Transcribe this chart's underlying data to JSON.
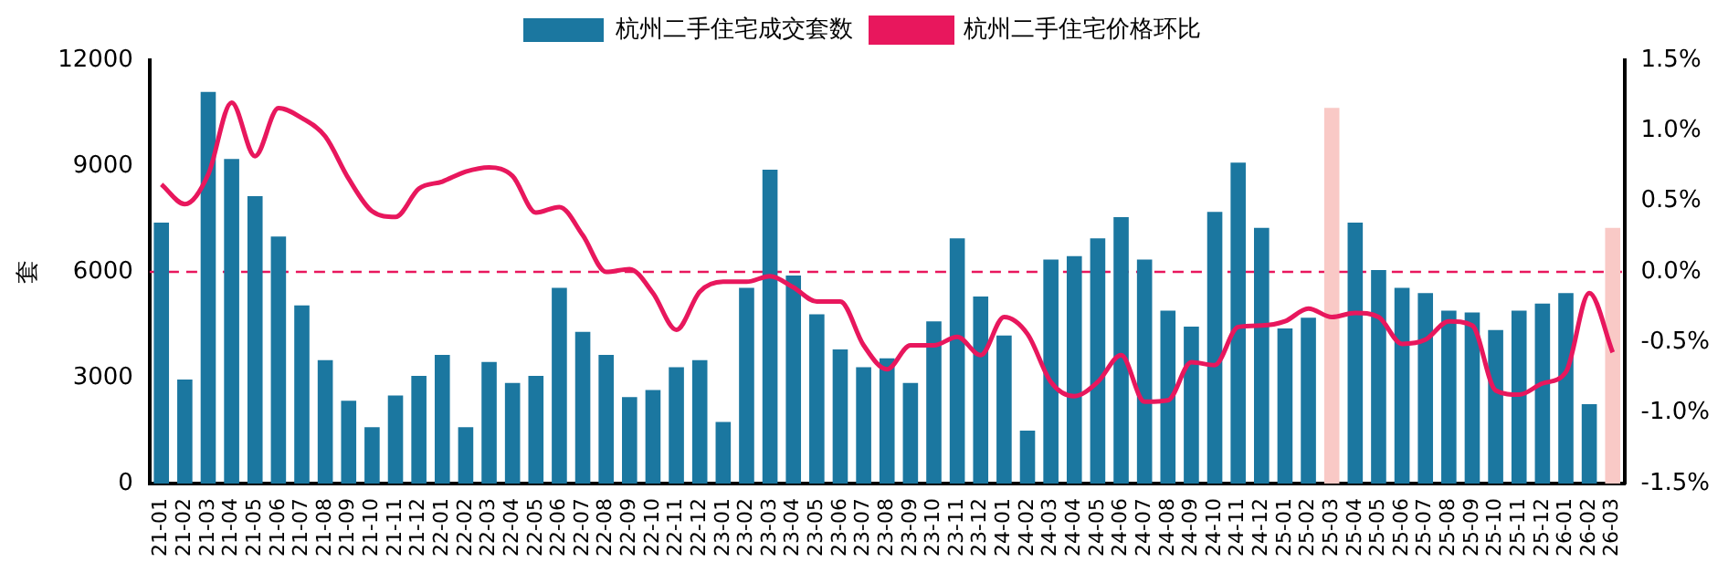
{
  "chart_data": {
    "type": "bar",
    "ylabel": "套",
    "legend": "top",
    "grid": false,
    "line_style": "solid",
    "marker": "none",
    "categories": [
      "21-01",
      "21-02",
      "21-03",
      "21-04",
      "21-05",
      "21-06",
      "21-07",
      "21-08",
      "21-09",
      "21-10",
      "21-11",
      "21-12",
      "22-01",
      "22-02",
      "22-03",
      "22-04",
      "22-05",
      "22-06",
      "22-07",
      "22-08",
      "22-09",
      "22-10",
      "22-11",
      "22-12",
      "23-01",
      "23-02",
      "23-03",
      "23-04",
      "23-05",
      "23-06",
      "23-07",
      "23-08",
      "23-09",
      "23-10",
      "23-11",
      "23-12",
      "24-01",
      "24-02",
      "24-03",
      "24-04",
      "24-05",
      "24-06",
      "24-07",
      "24-08",
      "24-09",
      "24-10",
      "24-11",
      "24-12",
      "25-01",
      "25-02",
      "25-03",
      "25-04",
      "25-05",
      "25-06",
      "25-07",
      "25-08",
      "25-09",
      "25-10",
      "25-11",
      "25-12",
      "26-01",
      "26-02",
      "26-03"
    ],
    "ylim": [
      0,
      12000
    ],
    "yticks": [
      0,
      3000,
      6000,
      9000,
      12000
    ],
    "y2lim": [
      -1.5,
      1.5
    ],
    "y2ticks": [
      {
        "value": -1.5,
        "label": "-1.5%"
      },
      {
        "value": -1,
        "label": "-1.0%"
      },
      {
        "value": -0.5,
        "label": "-0.5%"
      },
      {
        "value": 0,
        "label": "0.0%"
      },
      {
        "value": 0.5,
        "label": "0.5%"
      },
      {
        "value": 1,
        "label": "1.0%"
      },
      {
        "value": 1.5,
        "label": "1.5%"
      }
    ],
    "ref_lines": [
      {
        "axis": "y2",
        "value": 0,
        "color": "#e8175d",
        "line_style": "dashed"
      }
    ],
    "series": [
      {
        "name": "杭州二手住宅成交套数",
        "color": "#1b77a0",
        "colors": [
          "#1b77a0",
          "#1b77a0",
          "#1b77a0",
          "#1b77a0",
          "#1b77a0",
          "#1b77a0",
          "#1b77a0",
          "#1b77a0",
          "#1b77a0",
          "#1b77a0",
          "#1b77a0",
          "#1b77a0",
          "#1b77a0",
          "#1b77a0",
          "#1b77a0",
          "#1b77a0",
          "#1b77a0",
          "#1b77a0",
          "#1b77a0",
          "#1b77a0",
          "#1b77a0",
          "#1b77a0",
          "#1b77a0",
          "#1b77a0",
          "#1b77a0",
          "#1b77a0",
          "#1b77a0",
          "#1b77a0",
          "#1b77a0",
          "#1b77a0",
          "#1b77a0",
          "#1b77a0",
          "#1b77a0",
          "#1b77a0",
          "#1b77a0",
          "#1b77a0",
          "#1b77a0",
          "#1b77a0",
          "#1b77a0",
          "#1b77a0",
          "#1b77a0",
          "#1b77a0",
          "#1b77a0",
          "#1b77a0",
          "#1b77a0",
          "#1b77a0",
          "#1b77a0",
          "#1b77a0",
          "#1b77a0",
          "#1b77a0",
          "#f9c9c6",
          "#1b77a0",
          "#1b77a0",
          "#1b77a0",
          "#1b77a0",
          "#1b77a0",
          "#1b77a0",
          "#1b77a0",
          "#1b77a0",
          "#1b77a0",
          "#1b77a0",
          "#1b77a0",
          "#f9c9c6"
        ],
        "values": [
          7400,
          2950,
          11100,
          9200,
          8150,
          7000,
          5050,
          3500,
          2350,
          1600,
          2500,
          3050,
          3650,
          1600,
          3450,
          2850,
          3050,
          5550,
          4300,
          3650,
          2450,
          2650,
          3300,
          3500,
          1750,
          5550,
          8900,
          5900,
          4800,
          3800,
          3300,
          3550,
          2850,
          4600,
          6950,
          5300,
          4200,
          1500,
          6350,
          6450,
          6950,
          7550,
          6350,
          4900,
          4450,
          7700,
          9100,
          7250,
          4400,
          4700,
          10650,
          7400,
          6050,
          5550,
          5400,
          4900,
          4850,
          4350,
          4900,
          5100,
          5400,
          2250,
          7250
        ]
      },
      {
        "name": "杭州二手住宅价格环比",
        "type": "line",
        "axis": "y2",
        "color": "#e8175d",
        "values": [
          0.62,
          0.48,
          0.69,
          1.2,
          0.82,
          1.16,
          1.09,
          0.96,
          0.66,
          0.43,
          0.39,
          0.59,
          0.64,
          0.71,
          0.74,
          0.68,
          0.42,
          0.46,
          0.26,
          0.0,
          0.02,
          -0.15,
          -0.41,
          -0.14,
          -0.07,
          -0.07,
          -0.03,
          -0.11,
          -0.21,
          -0.21,
          -0.52,
          -0.69,
          -0.52,
          -0.52,
          -0.46,
          -0.59,
          -0.32,
          -0.44,
          -0.78,
          -0.88,
          -0.78,
          -0.59,
          -0.92,
          -0.91,
          -0.64,
          -0.66,
          -0.39,
          -0.38,
          -0.35,
          -0.26,
          -0.32,
          -0.29,
          -0.32,
          -0.51,
          -0.48,
          -0.35,
          -0.38,
          -0.84,
          -0.87,
          -0.79,
          -0.71,
          -0.15,
          -0.57
        ]
      }
    ]
  }
}
